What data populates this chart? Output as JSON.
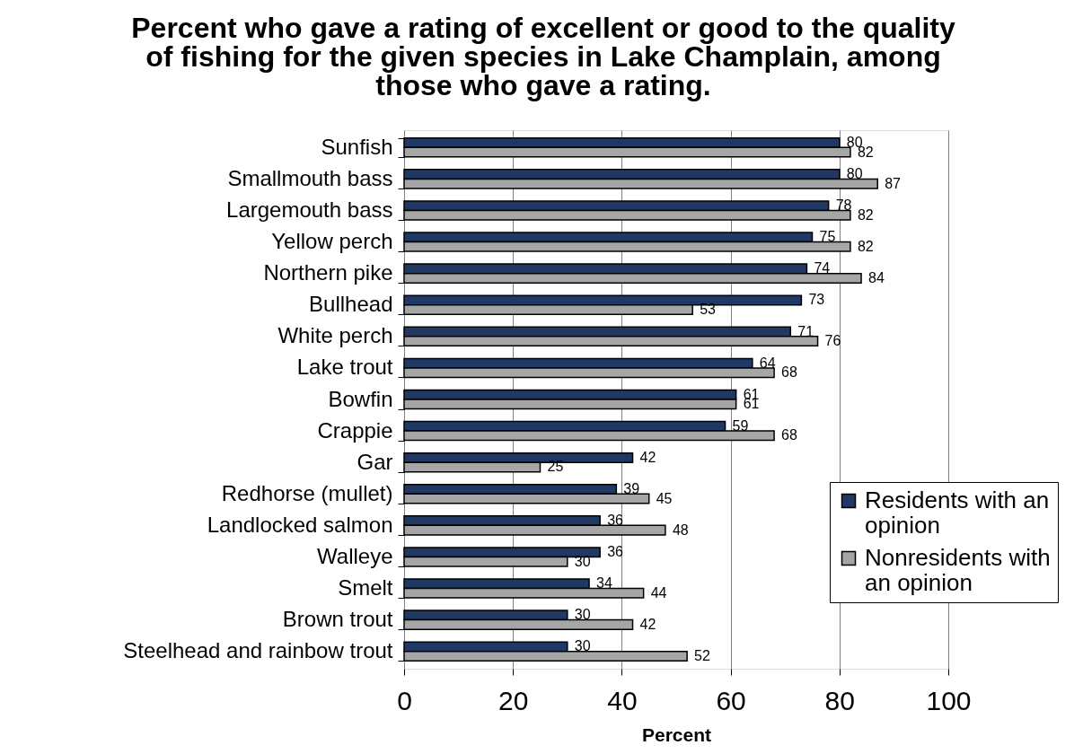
{
  "chart_data": {
    "type": "bar",
    "orientation": "horizontal",
    "title": "Percent who gave a rating of excellent or good to the quality of fishing for the given species in Lake Champlain, among those who gave a rating.",
    "xlabel": "Percent",
    "categories": [
      "Sunfish",
      "Smallmouth bass",
      "Largemouth bass",
      "Yellow perch",
      "Northern pike",
      "Bullhead",
      "White perch",
      "Lake trout",
      "Bowfin",
      "Crappie",
      "Gar",
      "Redhorse (mullet)",
      "Landlocked salmon",
      "Walleye",
      "Smelt",
      "Brown trout",
      "Steelhead and rainbow trout"
    ],
    "series": [
      {
        "name": "Residents with an opinion",
        "color": "#1f3864",
        "values": [
          80,
          80,
          78,
          75,
          74,
          73,
          71,
          64,
          61,
          59,
          42,
          39,
          36,
          36,
          34,
          30,
          30
        ]
      },
      {
        "name": "Nonresidents with an opinion",
        "color": "#a6a6a6",
        "values": [
          82,
          87,
          82,
          82,
          84,
          53,
          76,
          68,
          61,
          68,
          25,
          45,
          48,
          30,
          44,
          42,
          52
        ]
      }
    ],
    "xlim": [
      0,
      100
    ],
    "xticks": [
      0,
      20,
      40,
      60,
      80,
      100
    ],
    "grid": "x",
    "legend": "bottom right",
    "data_labels": true
  }
}
